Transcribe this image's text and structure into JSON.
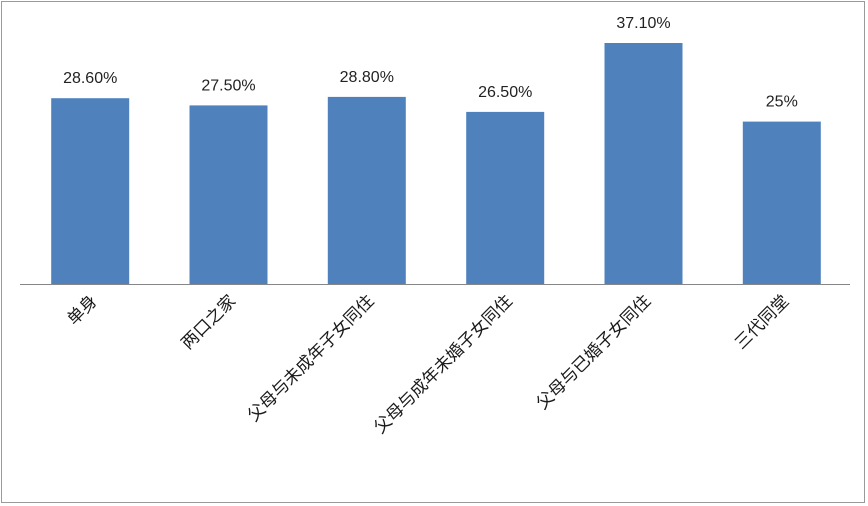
{
  "chart_data": {
    "type": "bar",
    "title": "",
    "xlabel": "",
    "ylabel": "",
    "ylim": [
      0,
      40
    ],
    "grid": false,
    "legend": "none",
    "bar_color": "#4F81BD",
    "categories": [
      "单身",
      "两口之家",
      "父母与未成年子女同住",
      "父母与成年未婚子女同住",
      "父母与已婚子女同住",
      "三代同堂"
    ],
    "values": [
      28.6,
      27.5,
      28.8,
      26.5,
      37.1,
      25
    ],
    "data_labels": [
      "28.60%",
      "27.50%",
      "28.80%",
      "26.50%",
      "37.10%",
      "25%"
    ]
  }
}
